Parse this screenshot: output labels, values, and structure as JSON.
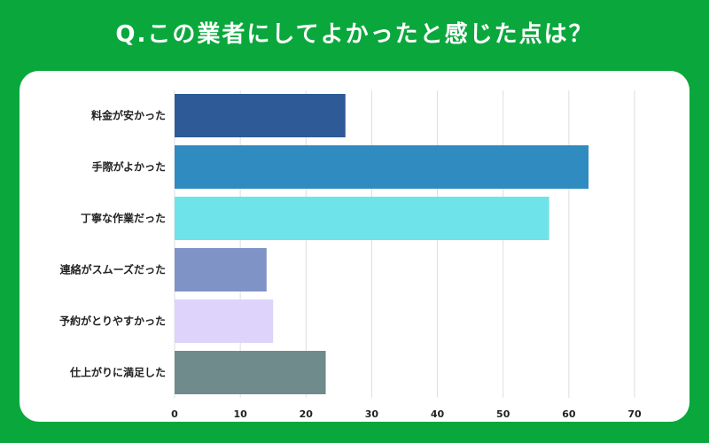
{
  "title": "Q.この業者にしてよかったと感じた点は？",
  "chart_data": {
    "type": "bar",
    "orientation": "horizontal",
    "title": "Q.この業者にしてよかったと感じた点は？",
    "categories": [
      "料金が安かった",
      "手際がよかった",
      "丁寧な作業だった",
      "連絡がスムーズだった",
      "予約がとりやすかった",
      "仕上がりに満足した"
    ],
    "values": [
      26,
      63,
      57,
      14,
      15,
      23
    ],
    "colors": [
      "#2e5a97",
      "#2f8bc0",
      "#6ee4ea",
      "#7f93c7",
      "#ded4fb",
      "#6f8b8c"
    ],
    "xlim": [
      0,
      70
    ],
    "xticks": [
      0,
      10,
      20,
      30,
      40,
      50,
      60,
      70
    ],
    "grid": true,
    "legend": "none"
  }
}
